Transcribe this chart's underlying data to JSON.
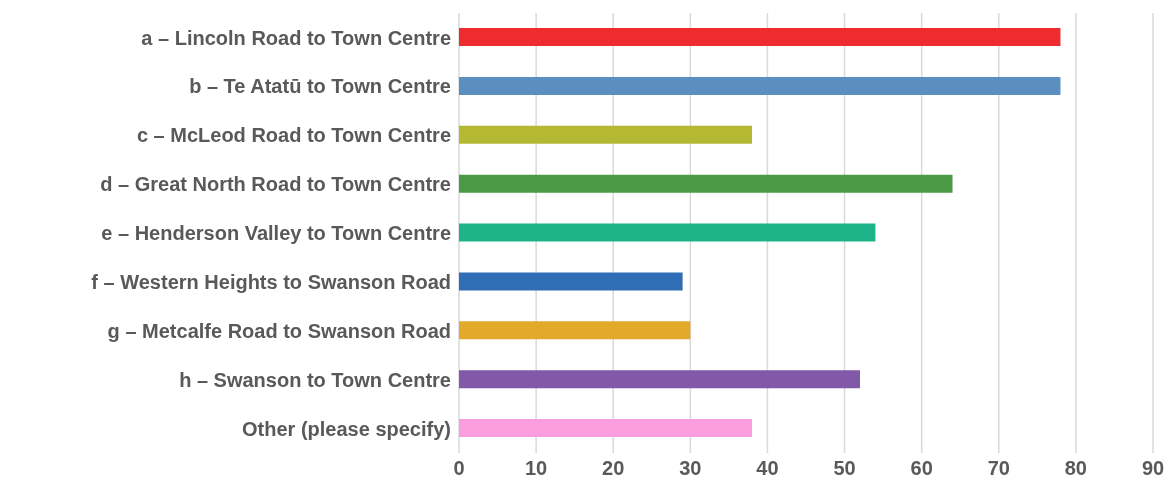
{
  "chart_data": {
    "type": "bar",
    "orientation": "horizontal",
    "categories": [
      "a – Lincoln Road to Town Centre",
      "b – Te Atatū to Town Centre",
      "c – McLeod Road to Town Centre",
      "d – Great North Road to Town Centre",
      "e – Henderson Valley to Town Centre",
      "f – Western Heights to Swanson Road",
      "g – Metcalfe Road to Swanson Road",
      "h – Swanson to Town Centre",
      "Other (please specify)"
    ],
    "values": [
      78,
      78,
      38,
      64,
      54,
      29,
      30,
      52,
      38
    ],
    "colors": [
      "#ee2b2f",
      "#5b8fc0",
      "#b5b833",
      "#4a9a45",
      "#1db48a",
      "#2f6db4",
      "#e2a92b",
      "#8258a8",
      "#fb9ddf"
    ],
    "xlim": [
      0,
      90
    ],
    "xticks": [
      0,
      10,
      20,
      30,
      40,
      50,
      60,
      70,
      80,
      90
    ],
    "grid": "x"
  }
}
